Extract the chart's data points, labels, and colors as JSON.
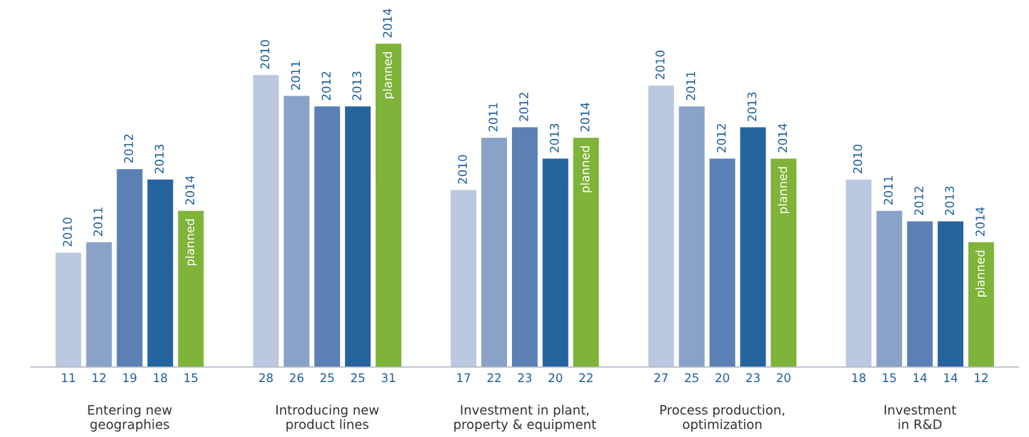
{
  "chart_data": {
    "type": "bar",
    "categories": [
      "Entering new\ngeographies",
      "Introducing new\nproduct lines",
      "Investment in plant,\nproperty & equipment",
      "Process production,\noptimization",
      "Investment\nin R&D"
    ],
    "series": [
      {
        "name": "2010",
        "color": "#bcc8e0",
        "values": [
          11,
          28,
          17,
          27,
          18
        ]
      },
      {
        "name": "2011",
        "color": "#8aa2c8",
        "values": [
          12,
          26,
          22,
          25,
          15
        ]
      },
      {
        "name": "2012",
        "color": "#5b80b4",
        "values": [
          19,
          25,
          23,
          20,
          14
        ]
      },
      {
        "name": "2013",
        "color": "#26649e",
        "values": [
          18,
          25,
          20,
          23,
          14
        ]
      },
      {
        "name": "2014",
        "color": "#80b33a",
        "values": [
          15,
          31,
          22,
          20,
          12
        ]
      }
    ],
    "annotations": [
      "planned",
      "planned",
      "planned",
      "planned",
      "planned"
    ],
    "data_labels": true,
    "legend": false,
    "grid": false
  }
}
